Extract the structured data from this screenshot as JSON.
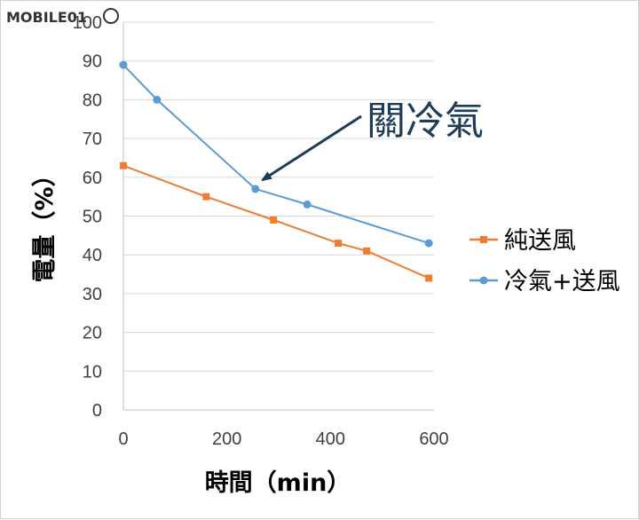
{
  "watermark": {
    "text": "MOBILE01"
  },
  "chart_data": {
    "type": "line",
    "title": "",
    "xlabel": "時間（min）",
    "ylabel": "電量（%）",
    "xlim": [
      0,
      600
    ],
    "ylim": [
      0,
      100
    ],
    "x_ticks": [
      0,
      200,
      400,
      600
    ],
    "y_ticks": [
      0,
      10,
      20,
      30,
      40,
      50,
      60,
      70,
      80,
      90,
      100
    ],
    "grid": "horizontal",
    "legend_position": "right",
    "series": [
      {
        "name": "純送風",
        "color": "#ed7d31",
        "marker": "square",
        "points": [
          [
            0,
            63
          ],
          [
            160,
            55
          ],
          [
            290,
            49
          ],
          [
            415,
            43
          ],
          [
            470,
            41
          ],
          [
            590,
            34
          ]
        ]
      },
      {
        "name": "冷氣+送風",
        "color": "#5b9bd5",
        "marker": "circle",
        "points": [
          [
            0,
            89
          ],
          [
            65,
            80
          ],
          [
            255,
            57
          ],
          [
            355,
            53
          ],
          [
            590,
            43
          ]
        ]
      }
    ],
    "annotations": [
      {
        "text": "關冷氣",
        "target": [
          255,
          57
        ],
        "arrow": true,
        "color": "#1f3b5a"
      }
    ]
  }
}
